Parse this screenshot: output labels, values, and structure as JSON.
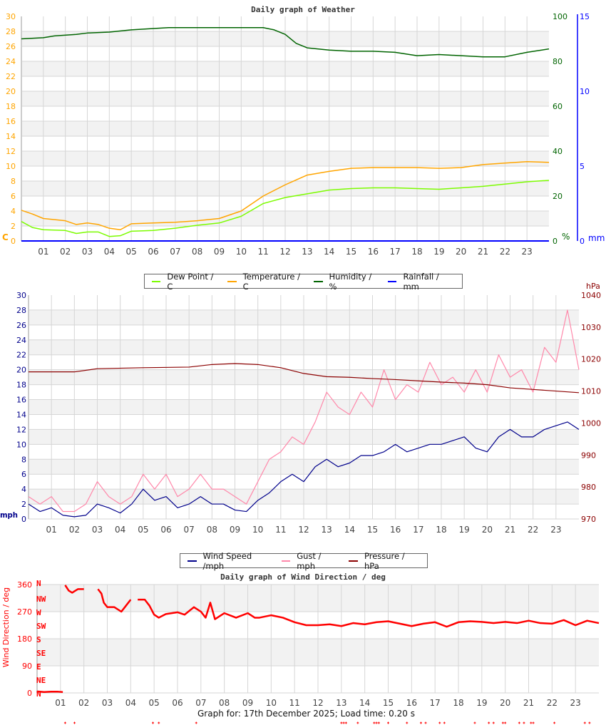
{
  "chart_data": [
    {
      "type": "line",
      "title": "Daily graph of Weather",
      "x_ticks": [
        "01",
        "02",
        "03",
        "04",
        "05",
        "06",
        "07",
        "08",
        "09",
        "10",
        "11",
        "12",
        "13",
        "14",
        "15",
        "16",
        "17",
        "18",
        "19",
        "20",
        "21",
        "22",
        "23"
      ],
      "xlim": [
        0,
        24
      ],
      "grid": true,
      "axes": {
        "left": {
          "label": "C",
          "range": [
            0,
            30
          ],
          "step": 2,
          "color": "#ffa500"
        },
        "right": {
          "label": "%",
          "range": [
            0,
            100
          ],
          "step": 20,
          "color": "#006400"
        },
        "right2": {
          "label": "mm",
          "range": [
            0,
            15
          ],
          "ticks": [
            0,
            5,
            10,
            15
          ],
          "color": "#0000ff"
        }
      },
      "legend": {
        "placement": "bottom",
        "entries": [
          "Dew Point / C",
          "Temperature / C",
          "Humidity / %",
          "Rainfall / mm"
        ]
      },
      "series": [
        {
          "name": "Dew Point / C",
          "axis": "left",
          "color": "#7cfc00",
          "x": [
            0,
            0.5,
            1,
            2,
            2.5,
            3,
            3.5,
            4,
            4.5,
            5,
            6,
            7,
            8,
            9,
            10,
            11,
            12,
            13,
            14,
            15,
            16,
            17,
            18,
            19,
            20,
            21,
            22,
            23,
            24
          ],
          "y": [
            2.6,
            1.8,
            1.5,
            1.4,
            1.0,
            1.2,
            1.2,
            0.6,
            0.7,
            1.3,
            1.4,
            1.7,
            2.1,
            2.4,
            3.3,
            5.0,
            5.8,
            6.3,
            6.8,
            7.0,
            7.1,
            7.1,
            7.0,
            6.9,
            7.1,
            7.3,
            7.6,
            7.9,
            8.1
          ]
        },
        {
          "name": "Temperature / C",
          "axis": "left",
          "color": "#ffa500",
          "x": [
            0,
            0.5,
            1,
            2,
            2.5,
            3,
            3.5,
            4,
            4.5,
            5,
            6,
            7,
            8,
            9,
            10,
            11,
            12,
            13,
            14,
            15,
            16,
            17,
            18,
            19,
            20,
            21,
            22,
            23,
            24
          ],
          "y": [
            4.1,
            3.6,
            3.0,
            2.7,
            2.2,
            2.4,
            2.2,
            1.7,
            1.5,
            2.3,
            2.4,
            2.5,
            2.7,
            3.0,
            4.0,
            6.0,
            7.5,
            8.8,
            9.3,
            9.7,
            9.8,
            9.8,
            9.8,
            9.7,
            9.8,
            10.2,
            10.4,
            10.6,
            10.5
          ]
        },
        {
          "name": "Humidity / %",
          "axis": "right",
          "color": "#006400",
          "x": [
            0,
            1,
            1.5,
            2.5,
            3,
            4,
            5,
            6.7,
            11,
            11.5,
            12,
            12.5,
            13,
            14,
            15,
            16,
            17,
            18,
            19,
            20,
            21,
            22,
            23,
            24
          ],
          "y": [
            90,
            90.5,
            91.3,
            92,
            92.6,
            93,
            94,
            95,
            95,
            94,
            92,
            88,
            86,
            85,
            84.5,
            84.5,
            84,
            82.5,
            83,
            82.5,
            82,
            82,
            84,
            85.5
          ]
        },
        {
          "name": "Rainfall / mm",
          "axis": "right2",
          "color": "#0000ff",
          "x": [
            0,
            24
          ],
          "y": [
            0,
            0
          ]
        }
      ]
    },
    {
      "type": "line",
      "x_ticks": [
        "01",
        "02",
        "03",
        "04",
        "05",
        "06",
        "07",
        "08",
        "09",
        "10",
        "11",
        "12",
        "13",
        "14",
        "15",
        "16",
        "17",
        "18",
        "19",
        "20",
        "21",
        "22",
        "23"
      ],
      "xlim": [
        0,
        24
      ],
      "grid": true,
      "axes": {
        "left": {
          "label": "mph",
          "range": [
            0,
            30
          ],
          "step": 2,
          "color": "#00008b"
        },
        "right": {
          "label": "hPa",
          "range": [
            970,
            1040
          ],
          "step": 10,
          "color": "#8b0000"
        }
      },
      "legend": {
        "placement": "bottom",
        "entries": [
          "Wind Speed /mph",
          "Gust / mph",
          "Pressure / hPa"
        ]
      },
      "series": [
        {
          "name": "Gust / mph",
          "axis": "left",
          "color": "#ff88aa",
          "x": [
            0,
            0.5,
            1,
            1.5,
            2,
            2.5,
            3,
            3.5,
            4,
            4.5,
            5,
            5.5,
            6,
            6.5,
            7,
            7.5,
            8,
            8.5,
            9,
            9.5,
            10,
            10.5,
            11,
            11.5,
            12,
            12.5,
            13,
            13.5,
            14,
            14.5,
            15,
            15.5,
            16,
            16.5,
            17,
            17.5,
            18,
            18.5,
            19,
            19.5,
            20,
            20.5,
            21,
            21.5,
            22,
            22.5,
            23,
            23.5,
            24
          ],
          "y": [
            3,
            2,
            3,
            1,
            1,
            2,
            5,
            3,
            2,
            3,
            6,
            4,
            6,
            3,
            4,
            6,
            4,
            4,
            3,
            2,
            5,
            8,
            9,
            11,
            10,
            13,
            17,
            15,
            14,
            17,
            15,
            20,
            16,
            18,
            17,
            21,
            18,
            19,
            17,
            20,
            17,
            22,
            19,
            20,
            17,
            23,
            21,
            28,
            20
          ]
        },
        {
          "name": "Wind Speed /mph",
          "axis": "left",
          "color": "#00008b",
          "x": [
            0,
            0.5,
            1,
            1.5,
            2,
            2.5,
            3,
            3.5,
            4,
            4.5,
            5,
            5.5,
            6,
            6.5,
            7,
            7.5,
            8,
            8.5,
            9,
            9.5,
            10,
            10.5,
            11,
            11.5,
            12,
            12.5,
            13,
            13.5,
            14,
            14.5,
            15,
            15.5,
            16,
            16.5,
            17,
            17.5,
            18,
            18.5,
            19,
            19.5,
            20,
            20.5,
            21,
            21.5,
            22,
            22.5,
            23,
            23.5,
            24
          ],
          "y": [
            2,
            1,
            1.5,
            0.5,
            0.3,
            0.5,
            2,
            1.5,
            0.8,
            2,
            4,
            2.5,
            3,
            1.5,
            2,
            3,
            2,
            2,
            1.2,
            1,
            2.5,
            3.5,
            5,
            6,
            5,
            7,
            8,
            7,
            7.5,
            8.5,
            8.5,
            9,
            10,
            9,
            9.5,
            10,
            10,
            10.5,
            11,
            9.5,
            9,
            11,
            12,
            11,
            11,
            12,
            12.5,
            13,
            12
          ]
        },
        {
          "name": "Pressure / hPa",
          "axis": "right",
          "color": "#8b0000",
          "x": [
            0,
            2,
            3,
            5,
            7,
            8,
            9,
            10,
            11,
            12,
            13,
            14,
            15,
            16,
            17,
            18,
            19,
            20,
            21,
            22,
            23,
            24
          ],
          "y": [
            1016,
            1016,
            1017,
            1017.3,
            1017.5,
            1018.3,
            1018.6,
            1018.3,
            1017.3,
            1015.5,
            1014.5,
            1014.3,
            1013.9,
            1013.6,
            1013.2,
            1012.8,
            1012.5,
            1012,
            1011,
            1010.5,
            1010,
            1009.5
          ]
        }
      ]
    },
    {
      "type": "scatter",
      "title": "Daily graph of Wind Direction / deg",
      "ylabel": "Wind Direction / deg",
      "x_ticks": [
        "01",
        "02",
        "03",
        "04",
        "05",
        "06",
        "07",
        "08",
        "09",
        "10",
        "11",
        "12",
        "13",
        "14",
        "15",
        "16",
        "17",
        "18",
        "19",
        "20",
        "21",
        "22",
        "23"
      ],
      "xlim": [
        0,
        24
      ],
      "ylim": [
        0,
        360
      ],
      "y_ticks": [
        0,
        90,
        180,
        270,
        360
      ],
      "compass_labels": [
        "N",
        "NW",
        "W",
        "SW",
        "S",
        "SE",
        "E",
        "NE",
        "N"
      ],
      "compass_values": [
        360,
        315,
        270,
        225,
        180,
        135,
        90,
        45,
        0
      ],
      "color": "#ff0000",
      "grid": true,
      "series": [
        {
          "x": [
            0,
            0.3,
            0.6,
            0.9,
            1.1
          ],
          "y": [
            5,
            3,
            4,
            4,
            3
          ]
        },
        {
          "x": [
            1.2,
            1.35,
            1.5,
            1.6,
            1.75,
            2.0
          ],
          "y": [
            358,
            340,
            333,
            338,
            345,
            345
          ]
        },
        {
          "x": [
            2.6,
            2.75,
            2.85,
            3.0,
            3.3,
            3.6,
            3.8,
            4.0
          ],
          "y": [
            345,
            330,
            300,
            285,
            285,
            270,
            290,
            310
          ]
        },
        {
          "x": [
            4.3,
            4.6,
            4.8,
            5.0,
            5.2,
            5.5,
            6.0,
            6.3,
            6.7,
            7.0,
            7.2,
            7.4,
            7.6,
            8.0,
            8.5,
            9.0,
            9.3,
            9.5,
            10.0,
            10.5,
            11.0,
            11.5,
            12.0,
            12.5,
            13.0,
            13.5,
            14.0,
            14.5,
            15.0,
            15.5,
            16.0,
            16.5,
            17.0,
            17.5,
            18.0,
            18.5,
            19.0,
            19.5,
            20.0,
            20.5,
            21.0,
            21.5,
            22.0,
            22.5,
            23.0,
            23.5,
            24.0
          ],
          "y": [
            310,
            310,
            290,
            260,
            250,
            262,
            268,
            260,
            285,
            270,
            250,
            300,
            245,
            265,
            250,
            265,
            250,
            250,
            258,
            250,
            235,
            225,
            225,
            228,
            222,
            232,
            228,
            235,
            238,
            230,
            222,
            230,
            235,
            220,
            235,
            238,
            236,
            232,
            236,
            232,
            240,
            232,
            230,
            242,
            225,
            240,
            232
          ]
        }
      ],
      "offscale_markers_hours": [
        1.2,
        1.6,
        4.95,
        5.2,
        6.8,
        13.0,
        13.1,
        13.2,
        13.7,
        14.4,
        14.5,
        14.6,
        15.0,
        15.8,
        16.4,
        16.6,
        17.2,
        17.4,
        18.7,
        19.3,
        19.5,
        19.9,
        20.0,
        20.6,
        20.8,
        21.1,
        21.2,
        22.1,
        23.4,
        23.6
      ]
    }
  ],
  "legend1": {
    "entries": [
      {
        "label": "Dew Point / C",
        "color": "#7cfc00"
      },
      {
        "label": "Temperature / C",
        "color": "#ffa500"
      },
      {
        "label": "Humidity / %",
        "color": "#006400"
      },
      {
        "label": "Rainfall / mm",
        "color": "#0000ff"
      }
    ]
  },
  "legend2": {
    "entries": [
      {
        "label": "Wind Speed /mph",
        "color": "#00008b"
      },
      {
        "label": "Gust / mph",
        "color": "#ff88aa"
      },
      {
        "label": "Pressure / hPa",
        "color": "#8b0000"
      }
    ]
  },
  "footer": "Graph for: 17th December 2025; Load time: 0.20 s"
}
